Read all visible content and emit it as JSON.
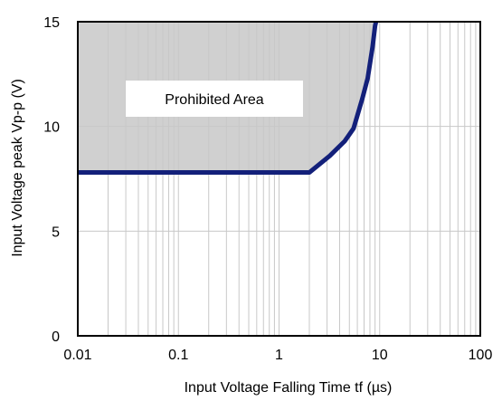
{
  "chart_data": {
    "type": "line",
    "xlabel": "Input Voltage Falling Time tf (µs)",
    "ylabel": "Input Voltage peak Vp-p (V)",
    "x_scale": "log",
    "xlim": [
      0.01,
      100
    ],
    "ylim": [
      0,
      15
    ],
    "x_ticks": [
      0.01,
      0.1,
      1,
      10,
      100
    ],
    "x_tick_labels": [
      "0.01",
      "0.1",
      "1",
      "10",
      "100"
    ],
    "y_ticks": [
      0,
      5,
      10,
      15
    ],
    "y_tick_labels": [
      "0",
      "5",
      "10",
      "15"
    ],
    "grid": true,
    "annotation": "Prohibited Area",
    "colors": {
      "boundary": "#13207a",
      "prohibited_fill": "#c8c8c8"
    },
    "series": [
      {
        "x": [
          0.01,
          2.0,
          3.2,
          4.5,
          5.5,
          6.7,
          7.6,
          8.5,
          9.0,
          9.2
        ],
        "y": [
          7.8,
          7.8,
          8.6,
          9.3,
          9.9,
          11.3,
          12.3,
          13.8,
          14.8,
          15
        ]
      }
    ]
  }
}
